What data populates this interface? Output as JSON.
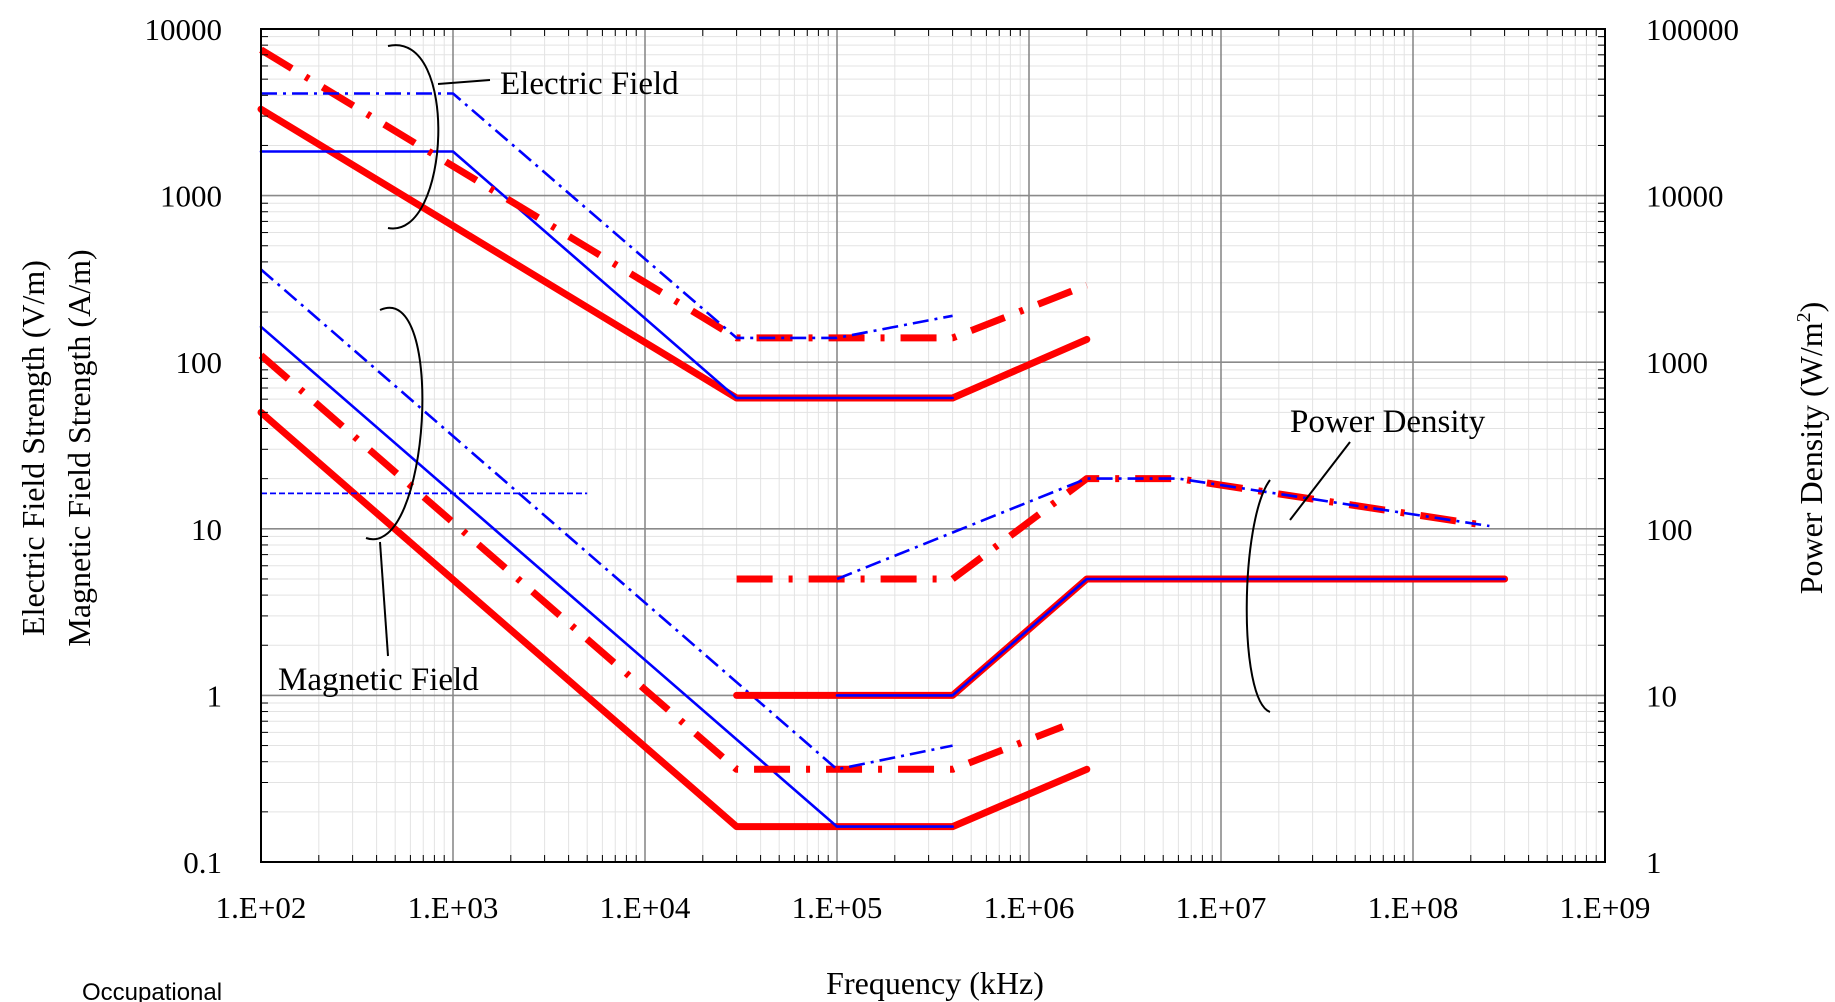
{
  "chart_data": {
    "type": "line",
    "title": "",
    "xlabel": "Frequency (kHz)",
    "ylabel_left_line1": "Electric Field  Strength (V/m)",
    "ylabel_left_line2": "Magnetic Field Strength (A/m)",
    "ylabel_right": "Power Density (W/m",
    "ylabel_right_sup": "2",
    "ylabel_right_close": ")",
    "xscale": "log",
    "yscale": "log",
    "xlim": [
      100,
      1000000000
    ],
    "ylim_left": [
      0.1,
      10000
    ],
    "ylim_right": [
      1,
      100000
    ],
    "grid": true,
    "x_ticks": [
      "1.E+02",
      "1.E+03",
      "1.E+04",
      "1.E+05",
      "1.E+06",
      "1.E+07",
      "1.E+08",
      "1.E+09"
    ],
    "y_ticks_left": [
      "0.1",
      "1",
      "10",
      "100",
      "1000",
      "10000"
    ],
    "y_ticks_right": [
      "1",
      "10",
      "100",
      "1000",
      "10000",
      "100000"
    ],
    "annotations": {
      "electric": "Electric Field",
      "magnetic": "Magnetic Field",
      "power": "Power Density"
    },
    "footnote": "Occupational",
    "series": [
      {
        "group": "electric",
        "color": "#ff0000",
        "style": "solid-thick",
        "x": [
          100,
          30000,
          400000,
          2000000
        ],
        "y": [
          3300,
          61,
          61,
          137
        ]
      },
      {
        "group": "electric",
        "color": "#0000ff",
        "style": "solid-thin",
        "x": [
          100,
          1000,
          30000,
          400000
        ],
        "y": [
          1840,
          1840,
          61,
          61
        ]
      },
      {
        "group": "electric",
        "color": "#ff0000",
        "style": "dashdot-thick",
        "x": [
          100,
          30000,
          400000,
          2000000
        ],
        "y": [
          7500,
          140,
          140,
          290
        ]
      },
      {
        "group": "electric",
        "color": "#0000ff",
        "style": "dashdot-thin",
        "x": [
          100,
          1000,
          30000,
          100000,
          400000
        ],
        "y": [
          4100,
          4100,
          140,
          140,
          190
        ]
      },
      {
        "group": "magnetic",
        "color": "#ff0000",
        "style": "solid-thick",
        "x": [
          100,
          30000,
          400000,
          2000000
        ],
        "y": [
          50,
          0.163,
          0.163,
          0.36
        ]
      },
      {
        "group": "magnetic",
        "color": "#0000ff",
        "style": "solid-thin",
        "x": [
          100,
          100000,
          400000
        ],
        "y": [
          163,
          0.163,
          0.163
        ]
      },
      {
        "group": "magnetic",
        "color": "#ff0000",
        "style": "dashdot-thick",
        "x": [
          100,
          30000,
          400000,
          1500000
        ],
        "y": [
          110,
          0.36,
          0.36,
          0.65
        ]
      },
      {
        "group": "magnetic",
        "color": "#0000ff",
        "style": "dashdot-thin",
        "x": [
          100,
          100000,
          400000
        ],
        "y": [
          360,
          0.36,
          0.5
        ]
      },
      {
        "group": "magnetic",
        "color": "#0000ff",
        "style": "dashed-thin",
        "x": [
          100,
          5000
        ],
        "y": [
          16.3,
          16.3
        ]
      },
      {
        "group": "power",
        "color": "#ff0000",
        "style": "solid-thick",
        "x": [
          30000,
          400000,
          2000000,
          300000000
        ],
        "y_right": [
          10,
          10,
          50,
          50
        ]
      },
      {
        "group": "power",
        "color": "#0000ff",
        "style": "solid-thin",
        "x": [
          100000,
          400000,
          2000000,
          300000000
        ],
        "y_right": [
          10,
          10,
          50,
          50
        ]
      },
      {
        "group": "power",
        "color": "#ff0000",
        "style": "dashdot-thick",
        "x": [
          30000,
          400000,
          2000000,
          6000000,
          250000000
        ],
        "y_right": [
          50,
          50,
          200,
          200,
          104
        ]
      },
      {
        "group": "power",
        "color": "#0000ff",
        "style": "dashdot-thin",
        "x": [
          100000,
          2000000,
          6000000,
          250000000
        ],
        "y_right": [
          50,
          200,
          200,
          104
        ]
      }
    ]
  }
}
